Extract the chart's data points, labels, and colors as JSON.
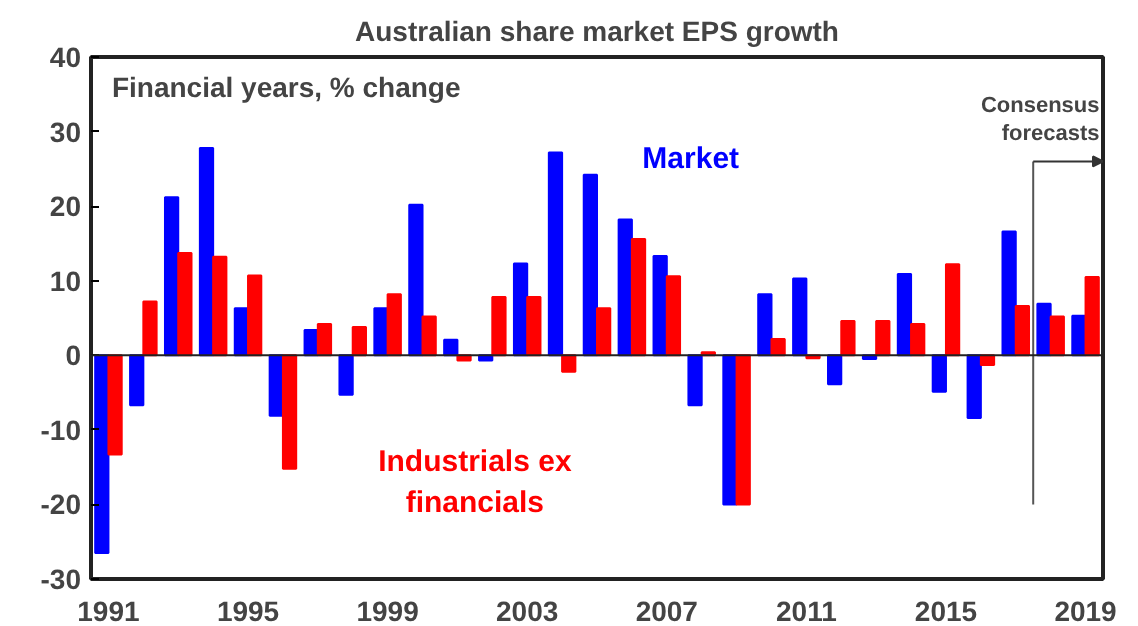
{
  "chart_data": {
    "type": "bar",
    "title": "Australian share market EPS growth",
    "x": [
      1991,
      1992,
      1993,
      1994,
      1995,
      1996,
      1997,
      1998,
      1999,
      2000,
      2001,
      2002,
      2003,
      2004,
      2005,
      2006,
      2007,
      2008,
      2009,
      2010,
      2011,
      2012,
      2013,
      2014,
      2015,
      2016,
      2017,
      2018,
      2019
    ],
    "series": [
      {
        "name": "Market",
        "color": "#0000ff",
        "values": [
          -26.5,
          -6.7,
          21.2,
          27.8,
          6.3,
          -8.1,
          3.4,
          -5.3,
          6.3,
          20.2,
          2.1,
          -0.7,
          12.3,
          27.2,
          24.2,
          18.2,
          13.3,
          -6.7,
          -20,
          8.2,
          10.3,
          -3.9,
          -0.5,
          10.9,
          -4.9,
          -8.4,
          16.6,
          6.9,
          5.3
        ]
      },
      {
        "name": "Industrials ex financials",
        "color": "#ff0000",
        "values": [
          -13.3,
          7.2,
          13.7,
          13.2,
          10.7,
          -15.2,
          4.2,
          3.8,
          8.2,
          5.2,
          -0.7,
          7.8,
          7.8,
          -2.2,
          6.3,
          15.6,
          10.6,
          0.4,
          -20,
          2.2,
          -0.4,
          4.6,
          4.6,
          4.2,
          12.2,
          -1.3,
          6.6,
          5.2,
          10.5
        ]
      }
    ],
    "xlim": [
      1990.5,
      2019.5
    ],
    "xticks": [
      1991,
      1995,
      1999,
      2003,
      2007,
      2011,
      2015,
      2019
    ],
    "ylim": [
      -30,
      40
    ],
    "yticks": [
      -30,
      -20,
      -10,
      0,
      10,
      20,
      30,
      40
    ],
    "annotations": [
      "Financial years, % change",
      "Consensus forecasts"
    ],
    "ref_lines": [
      {
        "axis": "y",
        "value": 0,
        "color": "#222222"
      }
    ]
  }
}
